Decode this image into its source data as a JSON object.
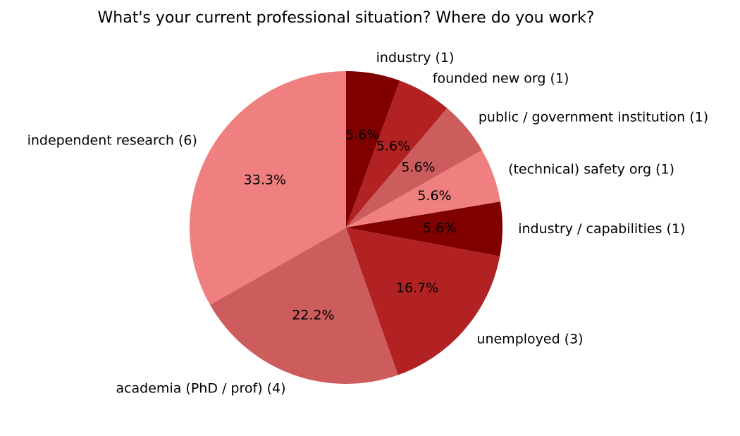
{
  "chart_data": {
    "type": "pie",
    "title": "What's your current professional situation? Where do you work?",
    "categories": [
      "industry (1)",
      "founded new org (1)",
      "public / government institution (1)",
      "(technical) safety org (1)",
      "industry / capabilities (1)",
      "unemployed (3)",
      "academia (PhD / prof) (4)",
      "independent research (6)"
    ],
    "values": [
      5.6,
      5.6,
      5.6,
      5.6,
      5.6,
      16.7,
      22.2,
      33.3
    ],
    "value_labels": [
      "5.6%",
      "5.6%",
      "5.6%",
      "5.6%",
      "5.6%",
      "16.7%",
      "22.2%",
      "33.3%"
    ],
    "colors": [
      "#800000",
      "#b22222",
      "#cd5c5c",
      "#f08080",
      "#800000",
      "#b22222",
      "#cd5c5c",
      "#f08080"
    ],
    "start_angle": 90,
    "counterclock": false
  }
}
